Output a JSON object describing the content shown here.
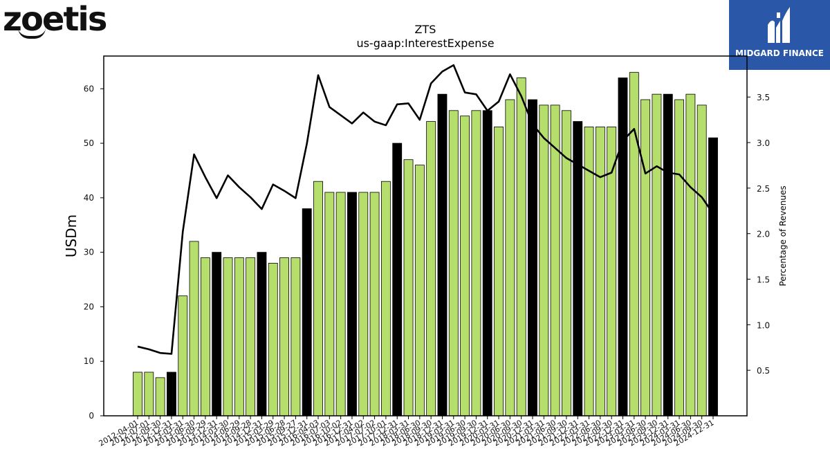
{
  "logos": {
    "left_brand": "zoetis",
    "right_brand": "MIDGARD FINANCE"
  },
  "colors": {
    "bar_normal": "#b5de6c",
    "bar_highlight": "#000000",
    "line": "#000000",
    "logo_bg": "#2a57a8"
  },
  "chart_data": {
    "type": "bar",
    "title": "ZTS",
    "subtitle": "us-gaap:InterestExpense",
    "ylabel": "USDm",
    "y2label": "Percentage of Revenues",
    "ylim": [
      0,
      66
    ],
    "y2lim": [
      0,
      3.95
    ],
    "yticks": [
      0,
      10,
      20,
      30,
      40,
      50,
      60
    ],
    "y2ticks": [
      "0.5",
      "1.0",
      "1.5",
      "2.0",
      "2.5",
      "3.0",
      "3.5"
    ],
    "grid": false,
    "categories": [
      "2012-04-01",
      "2012-07-01",
      "2012-09-30",
      "2012-12-31",
      "2013-03-31",
      "2013-06-30",
      "2013-09-29",
      "2013-12-31",
      "2014-03-30",
      "2014-06-29",
      "2014-09-28",
      "2014-12-31",
      "2015-03-29",
      "2015-06-28",
      "2015-09-27",
      "2015-12-31",
      "2016-04-03",
      "2016-07-03",
      "2016-10-02",
      "2016-12-31",
      "2017-04-02",
      "2017-07-02",
      "2017-10-01",
      "2017-12-31",
      "2018-03-31",
      "2018-06-30",
      "2018-09-30",
      "2018-12-31",
      "2019-03-31",
      "2019-06-30",
      "2019-09-30",
      "2019-12-31",
      "2020-03-31",
      "2020-06-30",
      "2020-09-30",
      "2020-12-31",
      "2021-03-31",
      "2021-06-30",
      "2021-09-30",
      "2021-12-31",
      "2022-03-31",
      "2022-06-30",
      "2022-09-30",
      "2022-12-31",
      "2023-03-31",
      "2023-06-30",
      "2023-09-30",
      "2023-12-31",
      "2024-03-31",
      "2024-06-30",
      "2024-09-30",
      "2024-12-31"
    ],
    "series": [
      {
        "kind": "bar",
        "values": [
          8,
          8,
          7,
          8,
          22,
          32,
          29,
          30,
          29,
          29,
          29,
          30,
          28,
          29,
          29,
          38,
          43,
          41,
          41,
          41,
          41,
          41,
          43,
          50,
          47,
          46,
          54,
          59,
          56,
          55,
          56,
          56,
          53,
          58,
          62,
          58,
          57,
          57,
          56,
          54,
          53,
          53,
          53,
          62,
          63,
          58,
          59,
          59,
          58,
          59,
          57,
          51
        ],
        "highlight": [
          3,
          7,
          11,
          15,
          19,
          23,
          27,
          31,
          35,
          39,
          43,
          47,
          51
        ]
      },
      {
        "kind": "line",
        "axis": "right",
        "values": [
          0.76,
          0.73,
          0.69,
          0.68,
          2.02,
          2.87,
          2.62,
          2.39,
          2.64,
          2.51,
          2.4,
          2.27,
          2.54,
          2.47,
          2.39,
          2.99,
          3.74,
          3.39,
          3.3,
          3.21,
          3.33,
          3.23,
          3.19,
          3.42,
          3.43,
          3.25,
          3.65,
          3.78,
          3.85,
          3.55,
          3.53,
          3.35,
          3.45,
          3.75,
          3.51,
          3.2,
          3.05,
          2.94,
          2.83,
          2.76,
          2.69,
          2.62,
          2.67,
          3.02,
          3.15,
          2.66,
          2.74,
          2.67,
          2.65,
          2.51,
          2.4,
          2.22
        ]
      }
    ]
  }
}
